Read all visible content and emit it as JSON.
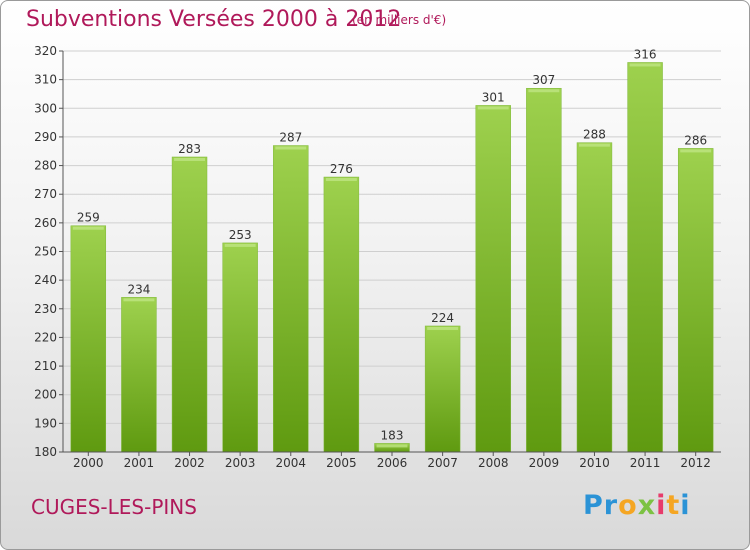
{
  "colors": {
    "title": "#b0195a",
    "bar_top": "#9ed14e",
    "bar_bottom": "#5f9a10",
    "axis": "#555555",
    "grid": "#cfcfcf"
  },
  "chart_data": {
    "type": "bar",
    "title": "Subventions Versées 2000 à 2012",
    "subtitle": "(en milliers d'€)",
    "categories": [
      "2000",
      "2001",
      "2002",
      "2003",
      "2004",
      "2005",
      "2006",
      "2007",
      "2008",
      "2009",
      "2010",
      "2011",
      "2012"
    ],
    "values": [
      259,
      234,
      283,
      253,
      287,
      276,
      183,
      224,
      301,
      307,
      288,
      316,
      286
    ],
    "ylim": [
      180,
      320
    ],
    "yticks": [
      180,
      190,
      200,
      210,
      220,
      230,
      240,
      250,
      260,
      270,
      280,
      290,
      300,
      310,
      320
    ],
    "grid": true,
    "xlabel": "",
    "ylabel": ""
  },
  "footer": {
    "commune": "CUGES-LES-PINS",
    "logo": {
      "letters": [
        "P",
        "r",
        "o",
        "x",
        "i",
        "t",
        "i"
      ],
      "colors": [
        "#2b93d6",
        "#2b93d6",
        "#f5a623",
        "#7cc243",
        "#e73b6b",
        "#f5a623",
        "#2b93d6"
      ]
    }
  }
}
